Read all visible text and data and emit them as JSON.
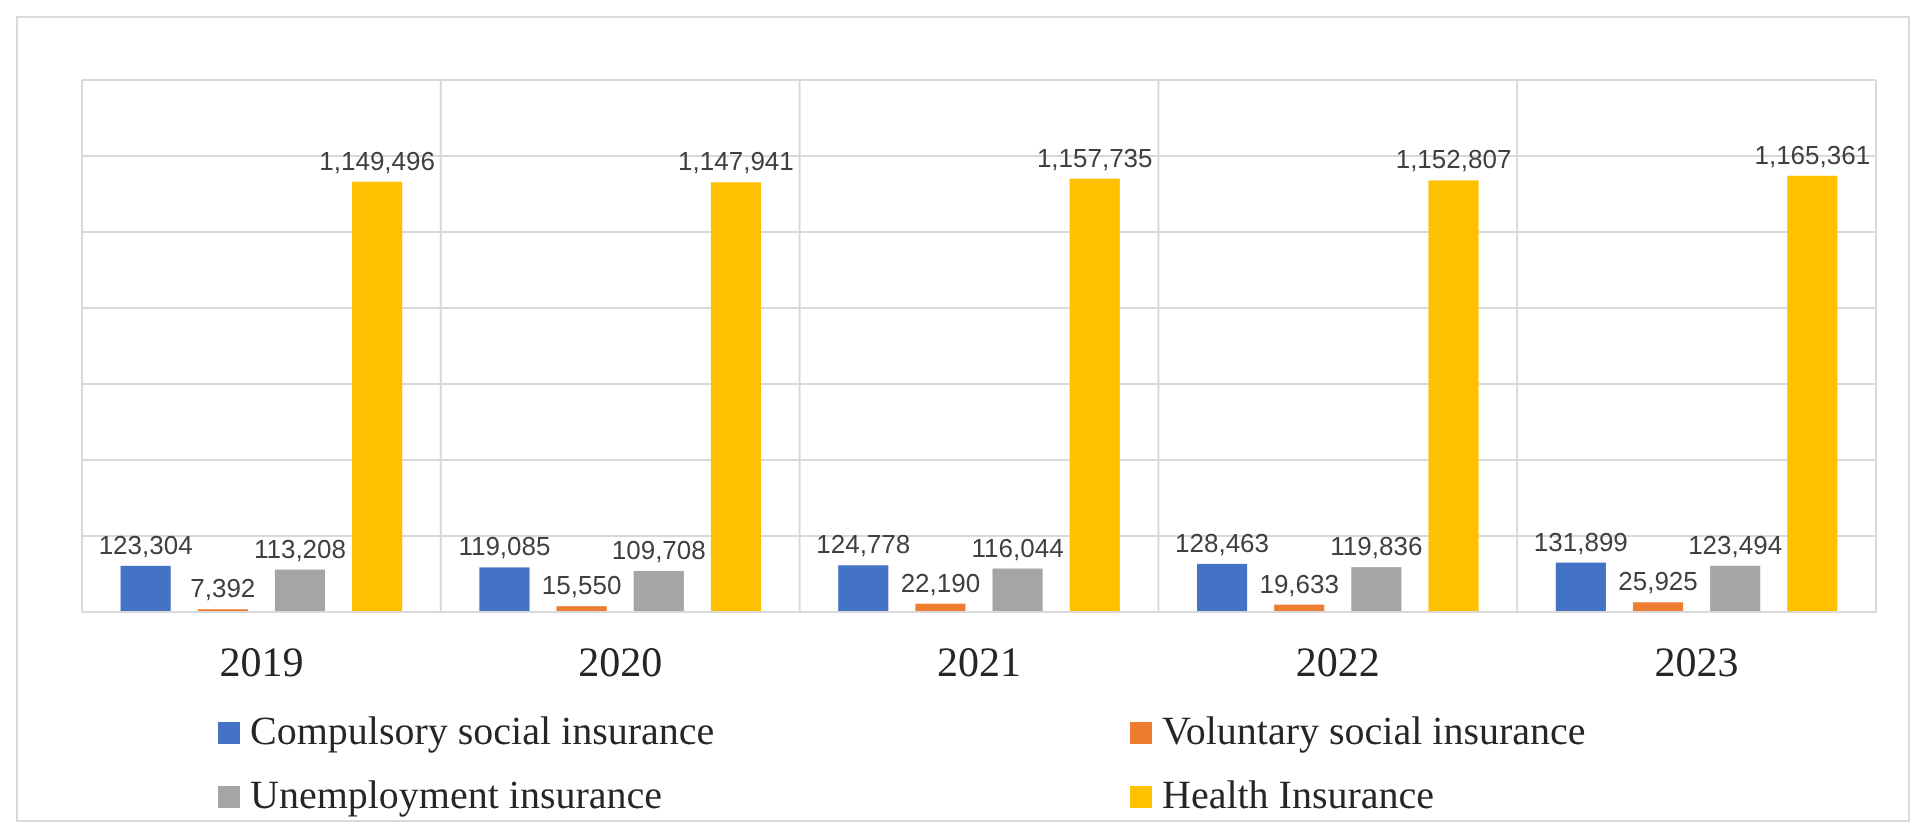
{
  "chart_data": {
    "type": "bar",
    "categories": [
      "2019",
      "2020",
      "2021",
      "2022",
      "2023"
    ],
    "series": [
      {
        "name": "Compulsory social insurance",
        "color": "#4472c4",
        "values": [
          123304,
          119085,
          124778,
          128463,
          131899
        ],
        "value_labels": [
          "123,304",
          "119,085",
          "124,778",
          "128,463",
          "131,899"
        ]
      },
      {
        "name": "Voluntary social insurance",
        "color": "#ed7d31",
        "values": [
          7392,
          15550,
          22190,
          19633,
          25925
        ],
        "value_labels": [
          "7,392",
          "15,550",
          "22,190",
          "19,633",
          "25,925"
        ]
      },
      {
        "name": "Unemployment insurance",
        "color": "#a5a5a5",
        "values": [
          113208,
          109708,
          116044,
          119836,
          123494
        ],
        "value_labels": [
          "113,208",
          "109,708",
          "116,044",
          "119,836",
          "123,494"
        ]
      },
      {
        "name": "Health Insurance",
        "color": "#ffc000",
        "values": [
          1149496,
          1147941,
          1157735,
          1152807,
          1165361
        ],
        "value_labels": [
          "1,149,496",
          "1,147,941",
          "1,157,735",
          "1,152,807",
          "1,165,361"
        ]
      }
    ],
    "grid": true,
    "legend": "bottom"
  }
}
